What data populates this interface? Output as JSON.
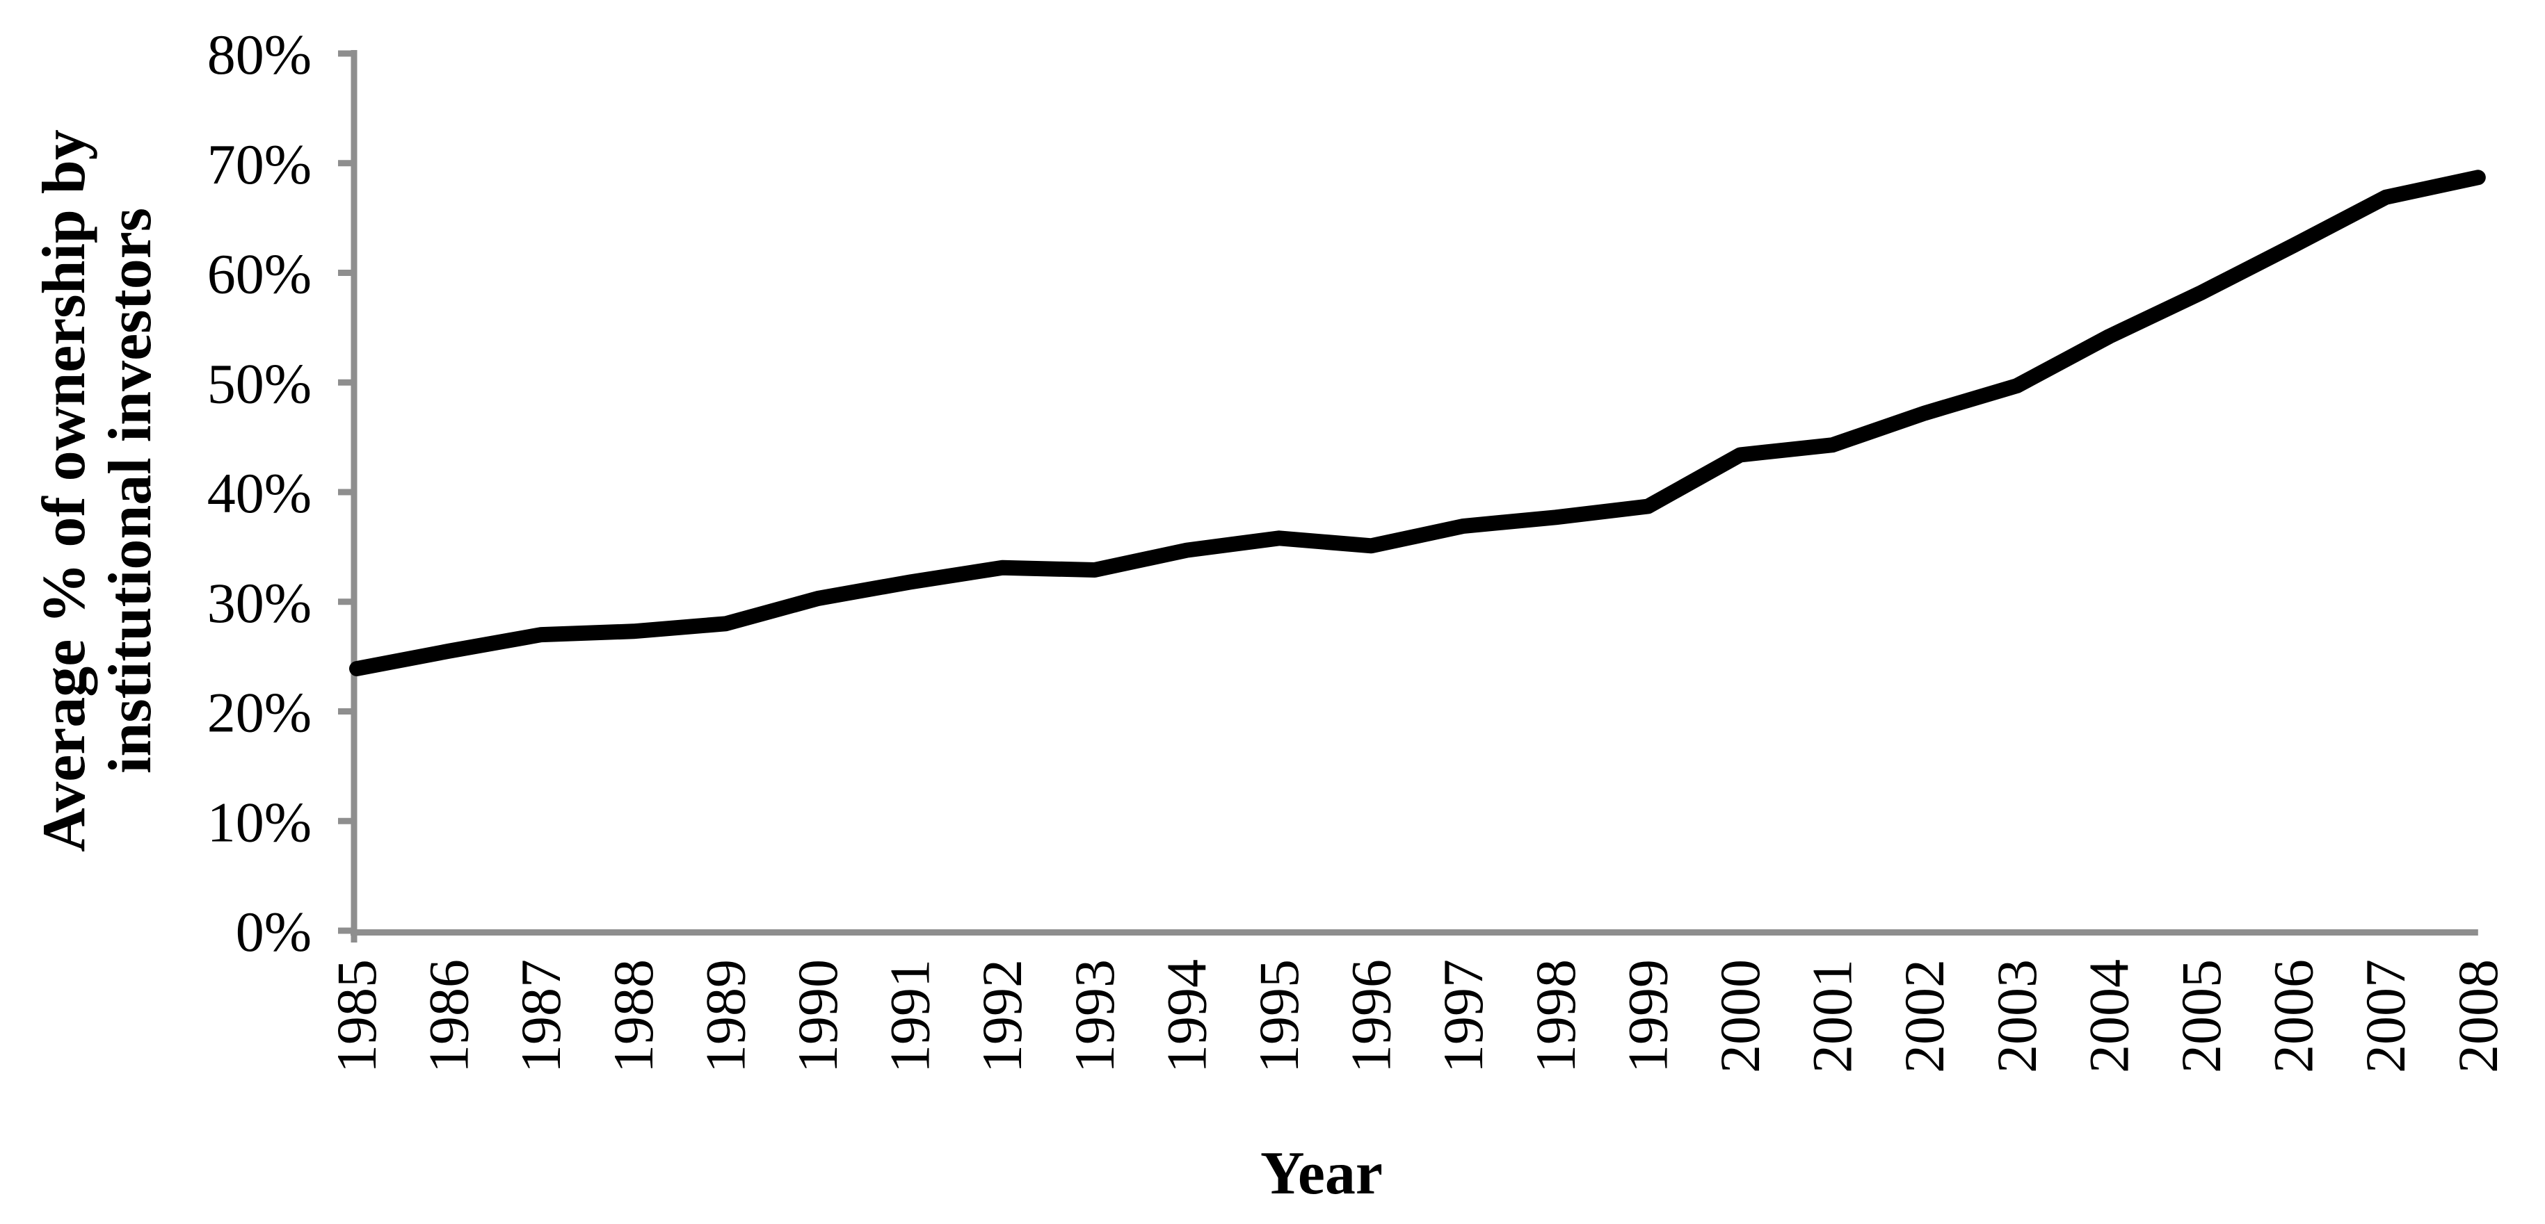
{
  "page": {
    "background_color": "#ffffff"
  },
  "chart_data": {
    "type": "line",
    "title": "",
    "xlabel": "Year",
    "ylabel": "Average % of ownership by institutional investors",
    "ylabel_lines": [
      "Average % of ownership by",
      "institutional investors"
    ],
    "x": [
      1985,
      1986,
      1987,
      1988,
      1989,
      1990,
      1991,
      1992,
      1993,
      1994,
      1995,
      1996,
      1997,
      1998,
      1999,
      2000,
      2001,
      2002,
      2003,
      2004,
      2005,
      2006,
      2007,
      2008
    ],
    "xtick_labels": [
      "1985",
      "1986",
      "1987",
      "1988",
      "1989",
      "1990",
      "1991",
      "1992",
      "1993",
      "1994",
      "1995",
      "1996",
      "1997",
      "1998",
      "1999",
      "2000",
      "2001",
      "2002",
      "2003",
      "2004",
      "2005",
      "2006",
      "2007",
      "2008"
    ],
    "series": [
      {
        "name": "Average % of ownership by institutional investors",
        "values": [
          23.9,
          25.5,
          27.0,
          27.3,
          28.0,
          30.3,
          31.8,
          33.1,
          32.9,
          34.7,
          35.8,
          35.1,
          36.9,
          37.7,
          38.7,
          43.4,
          44.3,
          47.2,
          49.7,
          54.2,
          58.2,
          62.5,
          66.9,
          68.7
        ]
      }
    ],
    "ylim": [
      0,
      80
    ],
    "ytick_step": 10,
    "ytick_labels": [
      "0%",
      "10%",
      "20%",
      "30%",
      "40%",
      "50%",
      "60%",
      "70%",
      "80%"
    ],
    "grid": false,
    "legend": "none",
    "markers": "none",
    "line_color": "#000000",
    "axis_color": "#8e8e8e",
    "text_color": "#000000"
  }
}
